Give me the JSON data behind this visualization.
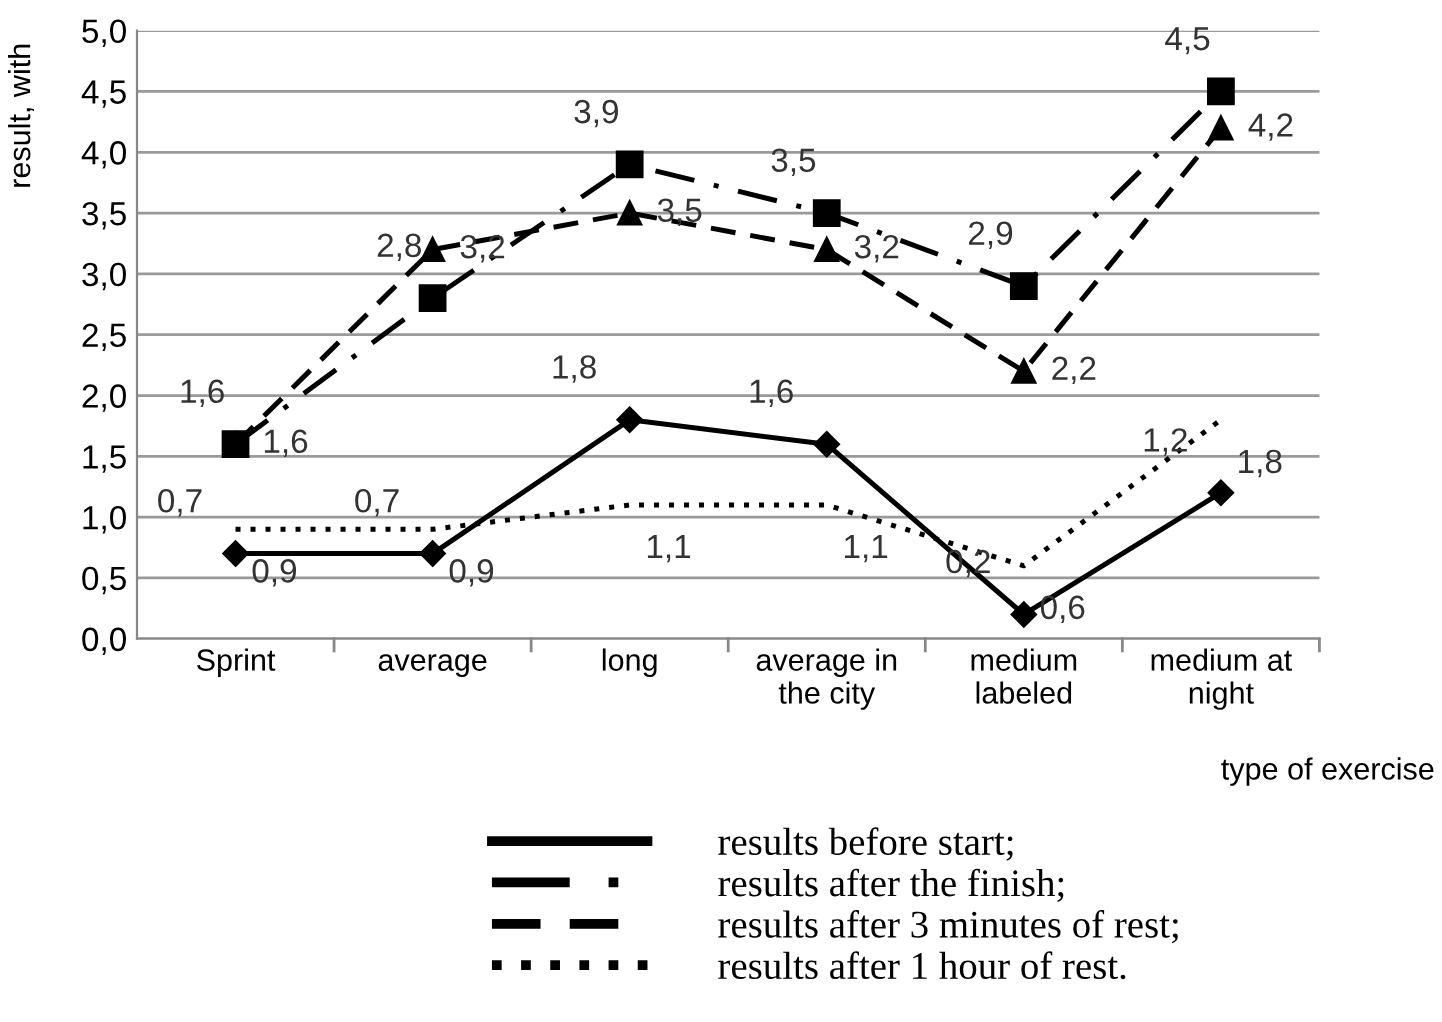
{
  "chart_data": {
    "type": "line",
    "xlabel": "type of exercise",
    "ylabel": "result, with",
    "categories": [
      "Sprint",
      "average",
      "long",
      "average in\nthe city",
      "medium\nlabeled",
      "medium at\nnight"
    ],
    "ylim": [
      0,
      5
    ],
    "yticks": [
      {
        "value": 0,
        "label": "0,0"
      },
      {
        "value": 0.5,
        "label": "0,5"
      },
      {
        "value": 1,
        "label": "1,0"
      },
      {
        "value": 1.5,
        "label": "1,5"
      },
      {
        "value": 2,
        "label": "2,0"
      },
      {
        "value": 2.5,
        "label": "2,5"
      },
      {
        "value": 3,
        "label": "3,0"
      },
      {
        "value": 3.5,
        "label": "3,5"
      },
      {
        "value": 4,
        "label": "4,0"
      },
      {
        "value": 4.5,
        "label": "4,5"
      },
      {
        "value": 5,
        "label": "5,0"
      }
    ],
    "grid": "y",
    "legend": "bottom",
    "series": [
      {
        "name": "results before start;",
        "color": "#000000",
        "line_style": "solid",
        "marker": "diamond",
        "values": [
          0.7,
          0.7,
          1.8,
          1.6,
          0.2,
          1.2
        ],
        "value_labels": [
          "0,7",
          "0,7",
          "1,8",
          "1,6",
          "0,2",
          "1,2"
        ]
      },
      {
        "name": "results after the finish;",
        "color": "#000000",
        "line_style": "dashdot",
        "marker": "square",
        "values": [
          1.6,
          2.8,
          3.9,
          3.5,
          2.9,
          4.5
        ],
        "value_labels": [
          "1,6",
          "2,8",
          "3,9",
          "3,5",
          "2,9",
          "4,5"
        ]
      },
      {
        "name": "results after 3 minutes of rest;",
        "color": "#000000",
        "line_style": "dashed",
        "marker": "triangle",
        "values": [
          1.6,
          3.2,
          3.5,
          3.2,
          2.2,
          4.2
        ],
        "value_labels": [
          "1,6",
          "3,2",
          "3,5",
          "3,2",
          "2,2",
          "4,2"
        ]
      },
      {
        "name": "results after 1 hour of rest.",
        "color": "#000000",
        "line_style": "dotted",
        "marker": "none",
        "values": [
          0.9,
          0.9,
          1.1,
          1.1,
          0.6,
          1.8
        ],
        "value_labels": [
          "0,9",
          "0,9",
          "1,1",
          "1,1",
          "0,6",
          "1,8"
        ]
      }
    ]
  }
}
